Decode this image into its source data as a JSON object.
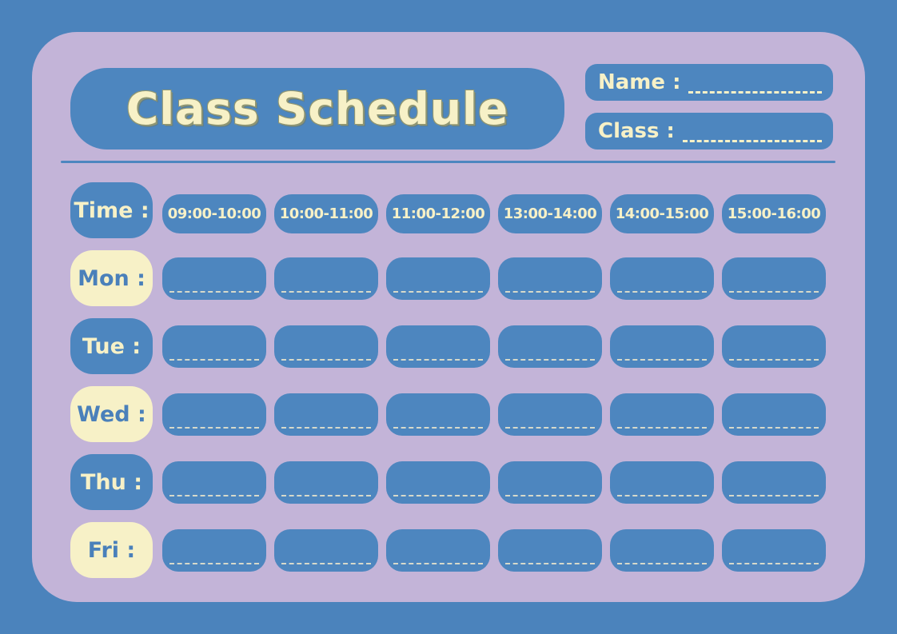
{
  "title": "Class Schedule",
  "fields": {
    "name_label": "Name :",
    "class_label": "Class :"
  },
  "schedule": {
    "time_label": "Time :",
    "time_slots": [
      "09:00-10:00",
      "10:00-11:00",
      "11:00-12:00",
      "13:00-14:00",
      "14:00-15:00",
      "15:00-16:00"
    ],
    "days": [
      {
        "label": "Mon :",
        "entries": [
          "",
          "",
          "",
          "",
          "",
          ""
        ]
      },
      {
        "label": "Tue :",
        "entries": [
          "",
          "",
          "",
          "",
          "",
          ""
        ]
      },
      {
        "label": "Wed :",
        "entries": [
          "",
          "",
          "",
          "",
          "",
          ""
        ]
      },
      {
        "label": "Thu :",
        "entries": [
          "",
          "",
          "",
          "",
          "",
          ""
        ]
      },
      {
        "label": "Fri :",
        "entries": [
          "",
          "",
          "",
          "",
          "",
          ""
        ]
      }
    ]
  },
  "colors": {
    "background_blue": "#4b83bc",
    "card_lavender": "#c3b4d8",
    "box_blue": "#4d86bf",
    "cream": "#f7f1c7",
    "blue_text": "#4a80ba",
    "title_outline": "#8f9673",
    "cell_dash": "#d6d9ca"
  }
}
